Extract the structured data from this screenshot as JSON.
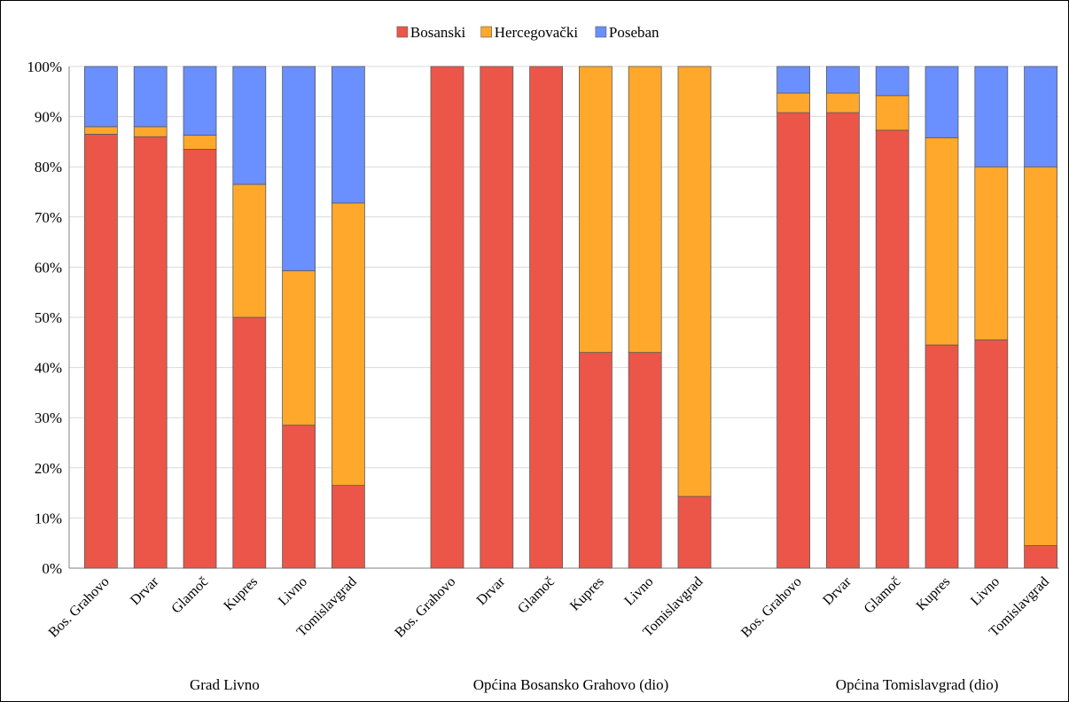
{
  "chart_data": {
    "type": "bar",
    "stacked": true,
    "percent": true,
    "title": "",
    "xlabel": "",
    "ylabel": "",
    "ylim": [
      0,
      100
    ],
    "y_ticks": [
      "0%",
      "10%",
      "20%",
      "30%",
      "40%",
      "50%",
      "60%",
      "70%",
      "80%",
      "90%",
      "100%"
    ],
    "grid": true,
    "legend_position": "top-center",
    "legend": [
      "Bosanski",
      "Hercegovački",
      "Poseban"
    ],
    "colors": [
      "#EB5649",
      "#FFA82C",
      "#6A8FFF"
    ],
    "groups": [
      {
        "label": "Grad Livno",
        "categories": [
          "Bos. Grahovo",
          "Drvar",
          "Glamoč",
          "Kupres",
          "Livno",
          "Tomislavgrad"
        ],
        "series": [
          {
            "name": "Bosanski",
            "values": [
              86.5,
              86.0,
              83.5,
              50.0,
              28.5,
              16.5
            ]
          },
          {
            "name": "Hercegovački",
            "values": [
              1.5,
              2.0,
              2.8,
              26.5,
              30.8,
              56.3
            ]
          },
          {
            "name": "Poseban",
            "values": [
              12.0,
              12.0,
              13.7,
              23.5,
              40.7,
              27.2
            ]
          }
        ]
      },
      {
        "label": "Općina Bosansko Grahovo (dio)",
        "categories": [
          "Bos. Grahovo",
          "Drvar",
          "Glamoč",
          "Kupres",
          "Livno",
          "Tomislavgrad"
        ],
        "series": [
          {
            "name": "Bosanski",
            "values": [
              100,
              100,
              100,
              43.0,
              43.0,
              14.3
            ]
          },
          {
            "name": "Hercegovački",
            "values": [
              0,
              0,
              0,
              57.0,
              57.0,
              85.7
            ]
          },
          {
            "name": "Poseban",
            "values": [
              0,
              0,
              0,
              0,
              0,
              0
            ]
          }
        ]
      },
      {
        "label": "Općina Tomislavgrad  (dio)",
        "categories": [
          "Bos. Grahovo",
          "Drvar",
          "Glamoč",
          "Kupres",
          "Livno",
          "Tomislavgrad"
        ],
        "series": [
          {
            "name": "Bosanski",
            "values": [
              90.8,
              90.8,
              87.3,
              44.5,
              45.5,
              4.5
            ]
          },
          {
            "name": "Hercegovački",
            "values": [
              3.9,
              3.9,
              6.9,
              41.3,
              34.5,
              75.5
            ]
          },
          {
            "name": "Poseban",
            "values": [
              5.3,
              5.3,
              5.8,
              14.2,
              20.0,
              20.0
            ]
          }
        ]
      }
    ]
  }
}
